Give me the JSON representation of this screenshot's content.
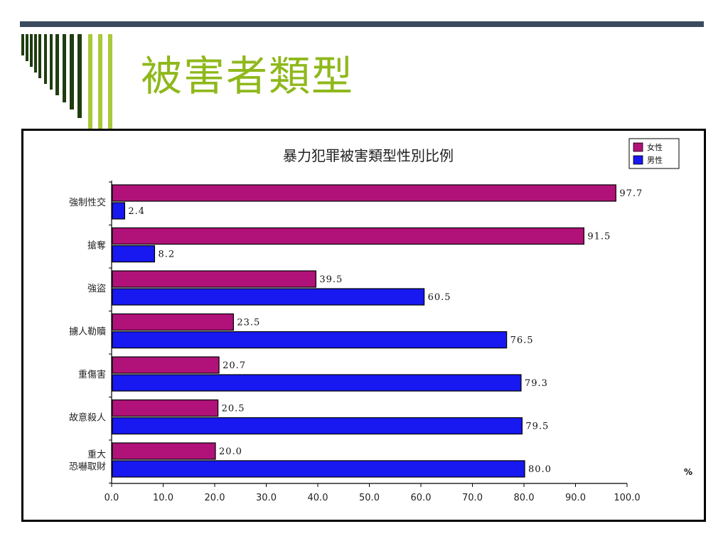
{
  "slide": {
    "title": "被害者類型"
  },
  "colors": {
    "rule": "#3b4a5e",
    "title": "#8fb81c",
    "stripe_dark": "#1f3d10",
    "stripe_light": "#a9c93a",
    "female": "#b0127a",
    "male": "#1818f0"
  },
  "chart_data": {
    "type": "bar",
    "orientation": "horizontal",
    "title": "暴力犯罪被害類型性別比例",
    "unit": "%",
    "categories": [
      [
        "強制性交"
      ],
      [
        "搶奪"
      ],
      [
        "強盜"
      ],
      [
        "擄人勒贖"
      ],
      [
        "重傷害"
      ],
      [
        "故意殺人"
      ],
      [
        "重大",
        "恐嚇取財"
      ]
    ],
    "series": [
      {
        "name": "女性",
        "color": "#b0127a",
        "values": [
          97.7,
          91.5,
          39.5,
          23.5,
          20.7,
          20.5,
          20.0
        ]
      },
      {
        "name": "男性",
        "color": "#1818f0",
        "values": [
          2.4,
          8.2,
          60.5,
          76.5,
          79.3,
          79.5,
          80.0
        ]
      }
    ],
    "xlim": [
      0,
      100
    ],
    "xticks": [
      "0.0",
      "10.0",
      "20.0",
      "30.0",
      "40.0",
      "50.0",
      "60.0",
      "70.0",
      "80.0",
      "90.0",
      "100.0"
    ],
    "legend_position": "top-right",
    "grid": false
  }
}
